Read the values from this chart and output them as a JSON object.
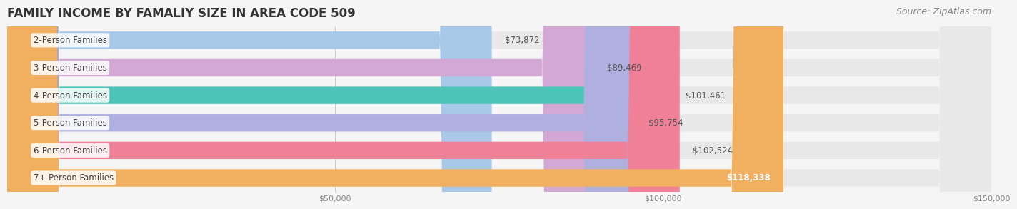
{
  "title": "FAMILY INCOME BY FAMALIY SIZE IN AREA CODE 509",
  "source": "Source: ZipAtlas.com",
  "categories": [
    "2-Person Families",
    "3-Person Families",
    "4-Person Families",
    "5-Person Families",
    "6-Person Families",
    "7+ Person Families"
  ],
  "values": [
    73872,
    89469,
    101461,
    95754,
    102524,
    118338
  ],
  "bar_colors": [
    "#a8c8e8",
    "#d4a8d4",
    "#4dc4b8",
    "#b0b0e0",
    "#f08098",
    "#f0b060"
  ],
  "label_colors": [
    "#888888",
    "#888888",
    "#888888",
    "#888888",
    "#888888",
    "#888888"
  ],
  "value_labels": [
    "$73,872",
    "$89,469",
    "$101,461",
    "$95,754",
    "$102,524",
    "$118,338"
  ],
  "xlim": [
    0,
    150000
  ],
  "xticks": [
    0,
    50000,
    100000,
    150000
  ],
  "xtick_labels": [
    "",
    "$50,000",
    "$100,000",
    "$150,000"
  ],
  "background_color": "#f5f5f5",
  "bar_background_color": "#e8e8e8",
  "title_fontsize": 12,
  "source_fontsize": 9,
  "label_fontsize": 8.5,
  "value_fontsize": 8.5,
  "tick_fontsize": 8
}
